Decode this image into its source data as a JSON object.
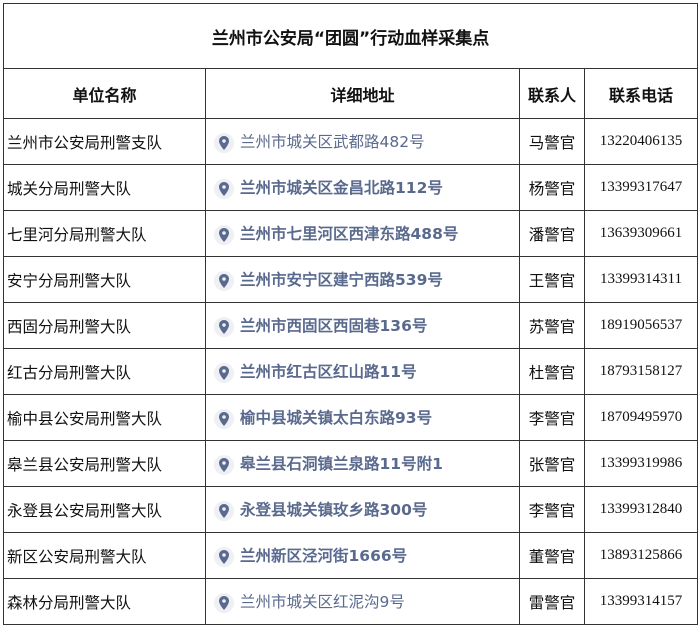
{
  "title": "兰州市公安局“团圆”行动血样采集点",
  "headers": [
    "单位名称",
    "详细地址",
    "联系人",
    "联系电话"
  ],
  "accent_color": "#5a6a8e",
  "rows": [
    {
      "unit": "兰州市公安局刑警支队",
      "address": "兰州市城关区武都路482号",
      "contact": "马警官",
      "phone": "13220406135"
    },
    {
      "unit": "城关分局刑警大队",
      "address": "兰州市城关区金昌北路112号",
      "contact": "杨警官",
      "phone": "13399317647"
    },
    {
      "unit": "七里河分局刑警大队",
      "address": "兰州市七里河区西津东路488号",
      "contact": "潘警官",
      "phone": "13639309661"
    },
    {
      "unit": "安宁分局刑警大队",
      "address": "兰州市安宁区建宁西路539号",
      "contact": "王警官",
      "phone": "13399314311"
    },
    {
      "unit": "西固分局刑警大队",
      "address": "兰州市西固区西固巷136号",
      "contact": "苏警官",
      "phone": "18919056537"
    },
    {
      "unit": "红古分局刑警大队",
      "address": "兰州市红古区红山路11号",
      "contact": "杜警官",
      "phone": "18793158127"
    },
    {
      "unit": "榆中县公安局刑警大队",
      "address": "榆中县城关镇太白东路93号",
      "contact": "李警官",
      "phone": "18709495970"
    },
    {
      "unit": "皋兰县公安局刑警大队",
      "address": "皋兰县石洞镇兰泉路11号附1",
      "contact": "张警官",
      "phone": "13399319986"
    },
    {
      "unit": "永登县公安局刑警大队",
      "address": "永登县城关镇玫乡路300号",
      "contact": "李警官",
      "phone": "13399312840"
    },
    {
      "unit": "新区公安局刑警大队",
      "address": "兰州新区泾河街1666号",
      "contact": "董警官",
      "phone": "13893125866"
    },
    {
      "unit": "森林分局刑警大队",
      "address": "兰州市城关区红泥沟9号",
      "contact": "雷警官",
      "phone": "13399314157"
    }
  ]
}
